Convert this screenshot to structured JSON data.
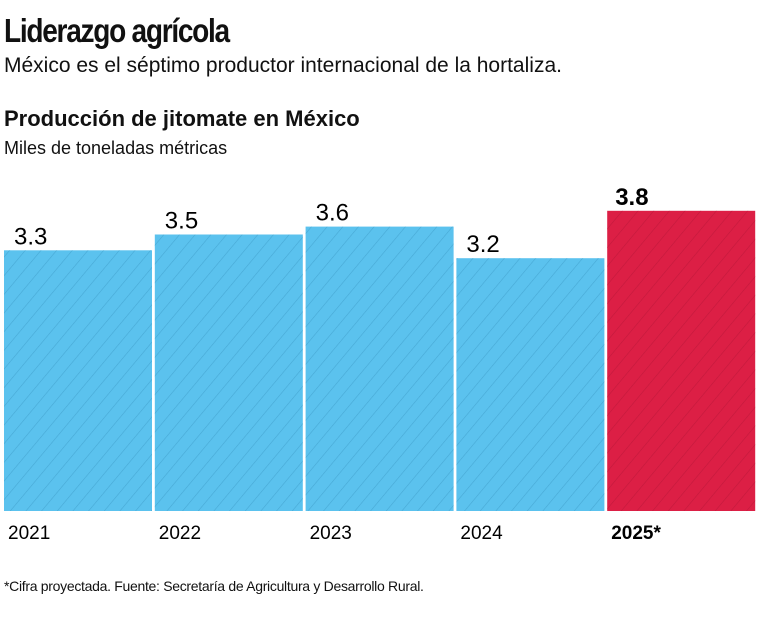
{
  "header": {
    "title": "Liderazgo agrícola",
    "subtitle": "México es el séptimo productor internacional de la hortaliza."
  },
  "chart_data": {
    "type": "bar",
    "title": "Producción de jitomate en México",
    "ylabel": "Miles de toneladas métricas",
    "categories": [
      "2021",
      "2022",
      "2023",
      "2024",
      "2025*"
    ],
    "values": [
      3.3,
      3.5,
      3.6,
      3.2,
      3.8
    ],
    "value_labels": [
      "3.3",
      "3.5",
      "3.6",
      "3.2",
      "3.8"
    ],
    "highlight_index": 4,
    "colors": {
      "bar": "#5bc2ee",
      "hatch": "#3f9dc9",
      "highlight": "#dc1f45",
      "highlight_hatch": "#b81638"
    },
    "ylim": [
      0,
      3.8
    ],
    "grid": false
  },
  "footer": {
    "note": "*Cifra proyectada. Fuente: Secretaría de Agricultura y Desarrollo Rural."
  }
}
